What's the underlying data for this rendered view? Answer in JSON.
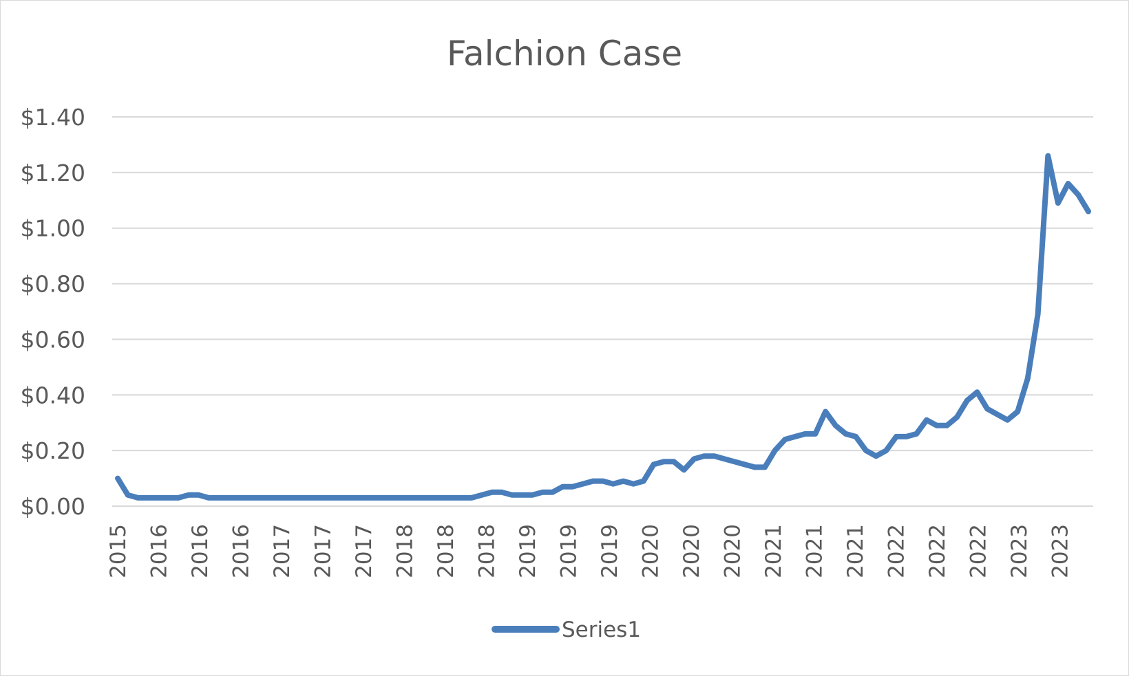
{
  "chart_data": {
    "type": "line",
    "title": "Falchion Case",
    "xlabel": "",
    "ylabel": "",
    "ylim": [
      0,
      1.4
    ],
    "y_ticks": [
      "$0.00",
      "$0.20",
      "$0.40",
      "$0.60",
      "$0.80",
      "$1.00",
      "$1.20",
      "$1.40"
    ],
    "x_tick_labels": [
      "2015",
      "2016",
      "2016",
      "2016",
      "2017",
      "2017",
      "2017",
      "2018",
      "2018",
      "2018",
      "2019",
      "2019",
      "2019",
      "2020",
      "2020",
      "2020",
      "2021",
      "2021",
      "2021",
      "2022",
      "2022",
      "2022",
      "2023",
      "2023"
    ],
    "grid": true,
    "legend_position": "bottom",
    "series": [
      {
        "name": "Series1",
        "color": "#4a7ebb",
        "values": [
          0.1,
          0.04,
          0.03,
          0.03,
          0.03,
          0.03,
          0.03,
          0.04,
          0.04,
          0.03,
          0.03,
          0.03,
          0.03,
          0.03,
          0.03,
          0.03,
          0.03,
          0.03,
          0.03,
          0.03,
          0.03,
          0.03,
          0.03,
          0.03,
          0.03,
          0.03,
          0.03,
          0.03,
          0.03,
          0.03,
          0.03,
          0.03,
          0.03,
          0.03,
          0.03,
          0.03,
          0.04,
          0.05,
          0.05,
          0.04,
          0.04,
          0.04,
          0.05,
          0.05,
          0.07,
          0.07,
          0.08,
          0.09,
          0.09,
          0.08,
          0.09,
          0.08,
          0.09,
          0.15,
          0.16,
          0.16,
          0.13,
          0.17,
          0.18,
          0.18,
          0.17,
          0.16,
          0.15,
          0.14,
          0.14,
          0.2,
          0.24,
          0.25,
          0.26,
          0.26,
          0.34,
          0.29,
          0.26,
          0.25,
          0.2,
          0.18,
          0.2,
          0.25,
          0.25,
          0.26,
          0.31,
          0.29,
          0.29,
          0.32,
          0.38,
          0.41,
          0.35,
          0.33,
          0.31,
          0.34,
          0.46,
          0.69,
          1.26,
          1.09,
          1.16,
          1.12,
          1.06
        ]
      }
    ]
  }
}
